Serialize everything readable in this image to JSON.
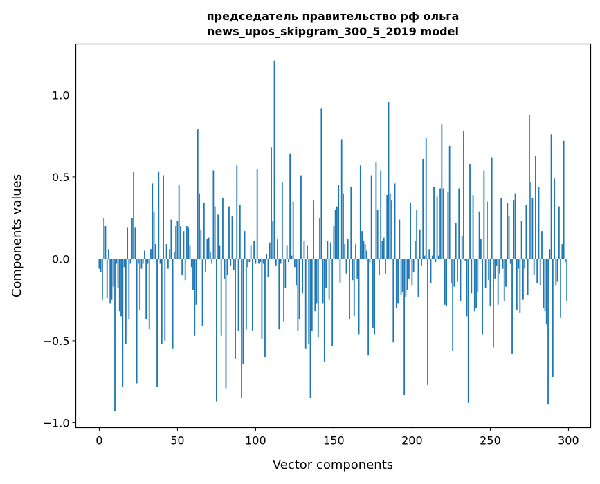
{
  "chart_data": {
    "type": "bar",
    "title": "председатель правительство рф ольга\nnews_upos_skipgram_300_5_2019 model",
    "title_lines": [
      "председатель правительство рф ольга",
      "news_upos_skipgram_300_5_2019 model"
    ],
    "xlabel": "Vector components",
    "ylabel": "Components values",
    "xlim": [
      -15,
      314.2
    ],
    "ylim": [
      -1.03,
      1.312
    ],
    "xticks": [
      0,
      50,
      100,
      150,
      200,
      250,
      300
    ],
    "xtick_labels": [
      "0",
      "50",
      "100",
      "150",
      "200",
      "250",
      "300"
    ],
    "yticks": [
      -1.0,
      -0.5,
      0.0,
      0.5,
      1.0
    ],
    "ytick_labels": [
      "−1.0",
      "−0.5",
      "0.0",
      "0.5",
      "1.0"
    ],
    "grid": false,
    "bar_color": "#1f77b4",
    "values": [
      -0.06,
      -0.08,
      -0.25,
      0.25,
      0.2,
      -0.24,
      0.06,
      -0.27,
      -0.25,
      -0.17,
      -0.93,
      -0.03,
      -0.18,
      -0.32,
      -0.35,
      -0.78,
      -0.05,
      -0.52,
      0.19,
      -0.37,
      -0.03,
      0.25,
      0.53,
      0.19,
      -0.76,
      -0.03,
      -0.31,
      -0.06,
      -0.03,
      0.05,
      -0.37,
      -0.03,
      -0.43,
      0.06,
      0.46,
      0.29,
      0.09,
      -0.78,
      0.53,
      -0.03,
      -0.52,
      0.51,
      -0.5,
      0.09,
      -0.06,
      0.06,
      0.24,
      -0.55,
      0.04,
      0.2,
      0.23,
      0.45,
      0.2,
      -0.1,
      0.17,
      -0.13,
      0.2,
      0.19,
      0.08,
      -0.05,
      -0.19,
      -0.47,
      -0.28,
      0.79,
      0.4,
      0.18,
      -0.41,
      0.34,
      -0.08,
      0.12,
      0.13,
      0.04,
      -0.03,
      0.54,
      0.32,
      -0.87,
      0.27,
      0.08,
      -0.47,
      0.37,
      -0.12,
      -0.79,
      -0.1,
      0.32,
      -0.04,
      0.26,
      -0.07,
      -0.61,
      0.57,
      -0.44,
      0.33,
      -0.85,
      -0.64,
      0.17,
      -0.43,
      -0.05,
      -0.02,
      0.08,
      -0.44,
      0.11,
      -0.03,
      0.55,
      -0.03,
      -0.02,
      -0.49,
      -0.03,
      -0.6,
      0.03,
      -0.11,
      0.1,
      0.68,
      0.23,
      1.21,
      -0.04,
      0.12,
      -0.43,
      -0.03,
      0.47,
      -0.38,
      -0.18,
      0.08,
      -0.02,
      0.64,
      0.02,
      0.35,
      -0.05,
      -0.16,
      -0.44,
      -0.37,
      0.51,
      -0.21,
      0.11,
      -0.55,
      0.08,
      -0.52,
      -0.85,
      -0.44,
      0.36,
      -0.32,
      -0.27,
      -0.48,
      0.25,
      0.92,
      -0.27,
      -0.63,
      -0.18,
      0.11,
      -0.25,
      0.1,
      -0.53,
      0.2,
      0.3,
      0.32,
      0.45,
      -0.15,
      0.73,
      0.4,
      0.09,
      -0.09,
      0.12,
      -0.37,
      0.44,
      -0.13,
      -0.35,
      0.09,
      -0.12,
      -0.46,
      0.57,
      0.17,
      0.11,
      0.09,
      0.05,
      -0.59,
      -0.02,
      0.51,
      -0.42,
      -0.46,
      0.59,
      0.3,
      -0.1,
      0.54,
      0.11,
      0.13,
      -0.09,
      0.39,
      0.96,
      0.4,
      0.36,
      -0.51,
      0.46,
      -0.3,
      -0.27,
      0.24,
      -0.22,
      -0.2,
      -0.83,
      -0.23,
      -0.19,
      -0.12,
      0.34,
      -0.16,
      -0.08,
      0.11,
      0.3,
      -0.23,
      0.18,
      -0.04,
      0.61,
      0.02,
      0.74,
      -0.77,
      0.06,
      -0.15,
      0.02,
      0.44,
      -0.02,
      0.38,
      0.02,
      0.43,
      0.82,
      0.43,
      -0.28,
      -0.29,
      0.41,
      0.69,
      -0.15,
      -0.56,
      -0.17,
      0.22,
      -0.14,
      0.43,
      -0.26,
      0.14,
      0.78,
      -0.01,
      -0.35,
      -0.88,
      0.58,
      -0.21,
      0.39,
      -0.32,
      -0.3,
      -0.2,
      0.29,
      0.12,
      -0.46,
      0.54,
      -0.18,
      0.35,
      -0.13,
      -0.29,
      0.62,
      -0.54,
      -0.12,
      -0.04,
      -0.28,
      -0.09,
      0.37,
      -0.06,
      -0.26,
      -0.17,
      0.34,
      0.26,
      -0.03,
      -0.58,
      0.36,
      0.4,
      -0.31,
      -0.06,
      -0.33,
      0.23,
      -0.25,
      -0.06,
      0.33,
      -0.22,
      0.88,
      0.47,
      0.37,
      -0.1,
      0.63,
      -0.15,
      0.44,
      -0.16,
      0.17,
      -0.3,
      -0.32,
      -0.4,
      -0.89,
      0.06,
      0.76,
      -0.72,
      0.49,
      -0.16,
      -0.14,
      0.32,
      -0.36,
      0.09,
      0.72,
      -0.02,
      -0.26
    ]
  }
}
